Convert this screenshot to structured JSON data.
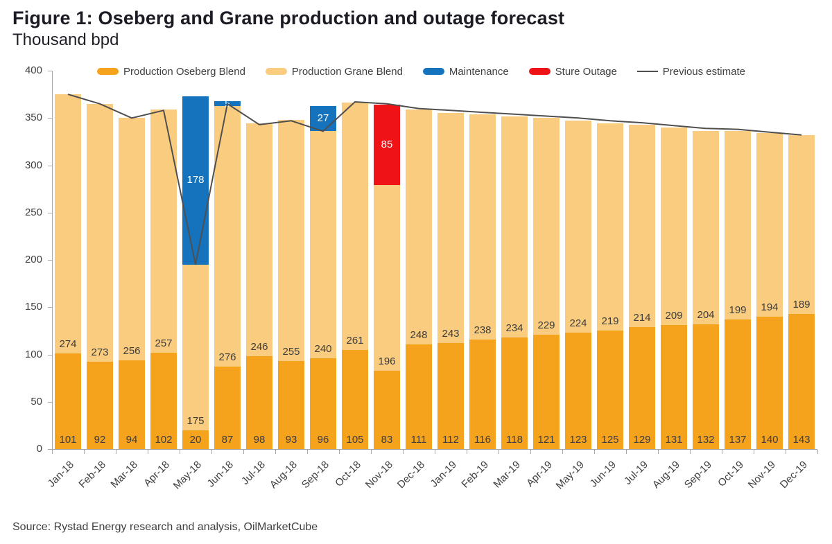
{
  "header": {
    "title": "Figure 1: Oseberg and Grane production and outage forecast",
    "subtitle": "Thousand bpd"
  },
  "footer": {
    "source": "Source: Rystad Energy research and analysis, OilMarketCube"
  },
  "colors": {
    "oseberg": "#F5A21D",
    "grane": "#F9CC7F",
    "maintenance": "#1572BC",
    "sture_outage": "#EF1216",
    "previous_estimate_line": "#4F4F4F",
    "axis": "#A6A6A6",
    "label_text": "#3D3D3D",
    "segment_label_text": "#FFFFFF"
  },
  "chart_data": {
    "type": "bar",
    "stacked": true,
    "title": "Figure 1: Oseberg and Grane production and outage forecast",
    "subtitle": "Thousand bpd",
    "xlabel": "",
    "ylabel": "Thousand bpd",
    "ylim": [
      0,
      400
    ],
    "yticks": [
      0,
      50,
      100,
      150,
      200,
      250,
      300,
      350,
      400
    ],
    "grid": false,
    "legend_position": "top",
    "categories": [
      "Jan-18",
      "Feb-18",
      "Mar-18",
      "Apr-18",
      "May-18",
      "Jun-18",
      "Jul-18",
      "Aug-18",
      "Sep-18",
      "Oct-18",
      "Nov-18",
      "Dec-18",
      "Jan-19",
      "Feb-19",
      "Mar-19",
      "Apr-19",
      "May-19",
      "Jun-19",
      "Jul-19",
      "Aug-19",
      "Sep-19",
      "Oct-19",
      "Nov-19",
      "Dec-19"
    ],
    "series": [
      {
        "name": "Production Oseberg Blend",
        "type": "bar",
        "color": "#F5A21D",
        "values": [
          101,
          92,
          94,
          102,
          20,
          87,
          98,
          93,
          96,
          105,
          83,
          111,
          112,
          116,
          118,
          121,
          123,
          125,
          129,
          131,
          132,
          137,
          140,
          143
        ]
      },
      {
        "name": "Production Grane Blend",
        "type": "bar",
        "color": "#F9CC7F",
        "values": [
          274,
          273,
          256,
          257,
          175,
          276,
          246,
          255,
          240,
          261,
          196,
          248,
          243,
          238,
          234,
          229,
          224,
          219,
          214,
          209,
          204,
          199,
          194,
          189
        ]
      },
      {
        "name": "Maintenance",
        "type": "bar",
        "color": "#1572BC",
        "values": [
          0,
          0,
          0,
          0,
          178,
          5,
          0,
          0,
          27,
          0,
          0,
          0,
          0,
          0,
          0,
          0,
          0,
          0,
          0,
          0,
          0,
          0,
          0,
          0
        ]
      },
      {
        "name": "Sture Outage",
        "type": "bar",
        "color": "#EF1216",
        "values": [
          0,
          0,
          0,
          0,
          0,
          0,
          0,
          0,
          0,
          0,
          85,
          0,
          0,
          0,
          0,
          0,
          0,
          0,
          0,
          0,
          0,
          0,
          0,
          0
        ]
      },
      {
        "name": "Previous estimate",
        "type": "line",
        "color": "#4F4F4F",
        "values": [
          375,
          365,
          350,
          358,
          195,
          365,
          343,
          347,
          336,
          367,
          365,
          360,
          358,
          356,
          354,
          352,
          350,
          347,
          345,
          342,
          339,
          338,
          335,
          332
        ]
      }
    ]
  }
}
